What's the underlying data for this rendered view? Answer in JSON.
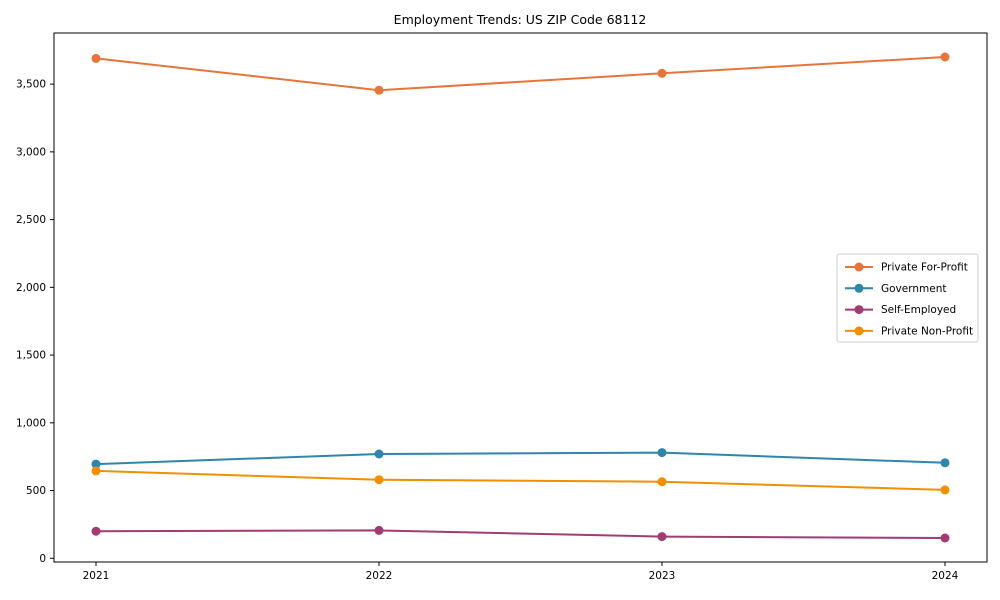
{
  "figure": {
    "background": "#ffffff",
    "spine_color": "#000000",
    "text_color": "#000000",
    "legend_border_color": "#cccccc"
  },
  "chart_data": {
    "type": "line",
    "title": "Employment Trends: US ZIP Code 68112",
    "xlabel": "",
    "ylabel": "",
    "categories": [
      "2021",
      "2022",
      "2023",
      "2024"
    ],
    "series": [
      {
        "name": "Private For-Profit",
        "color": "#E8743B",
        "values": [
          3690,
          3455,
          3580,
          3700
        ]
      },
      {
        "name": "Government",
        "color": "#2E86AB",
        "values": [
          695,
          770,
          780,
          705
        ]
      },
      {
        "name": "Self-Employed",
        "color": "#A23B72",
        "values": [
          200,
          206,
          160,
          150
        ]
      },
      {
        "name": "Private Non-Profit",
        "color": "#F18F01",
        "values": [
          645,
          580,
          565,
          505
        ]
      }
    ],
    "ytick_labels": [
      "0",
      "500",
      "1,000",
      "1,500",
      "2,000",
      "2,500",
      "3,000",
      "3,500"
    ],
    "ytick_values": [
      0,
      500,
      1000,
      1500,
      2000,
      2500,
      3000,
      3500
    ],
    "ylim": [
      -27.5,
      3877.5
    ],
    "grid": false,
    "marker": "circle",
    "legend_position": "center right"
  }
}
